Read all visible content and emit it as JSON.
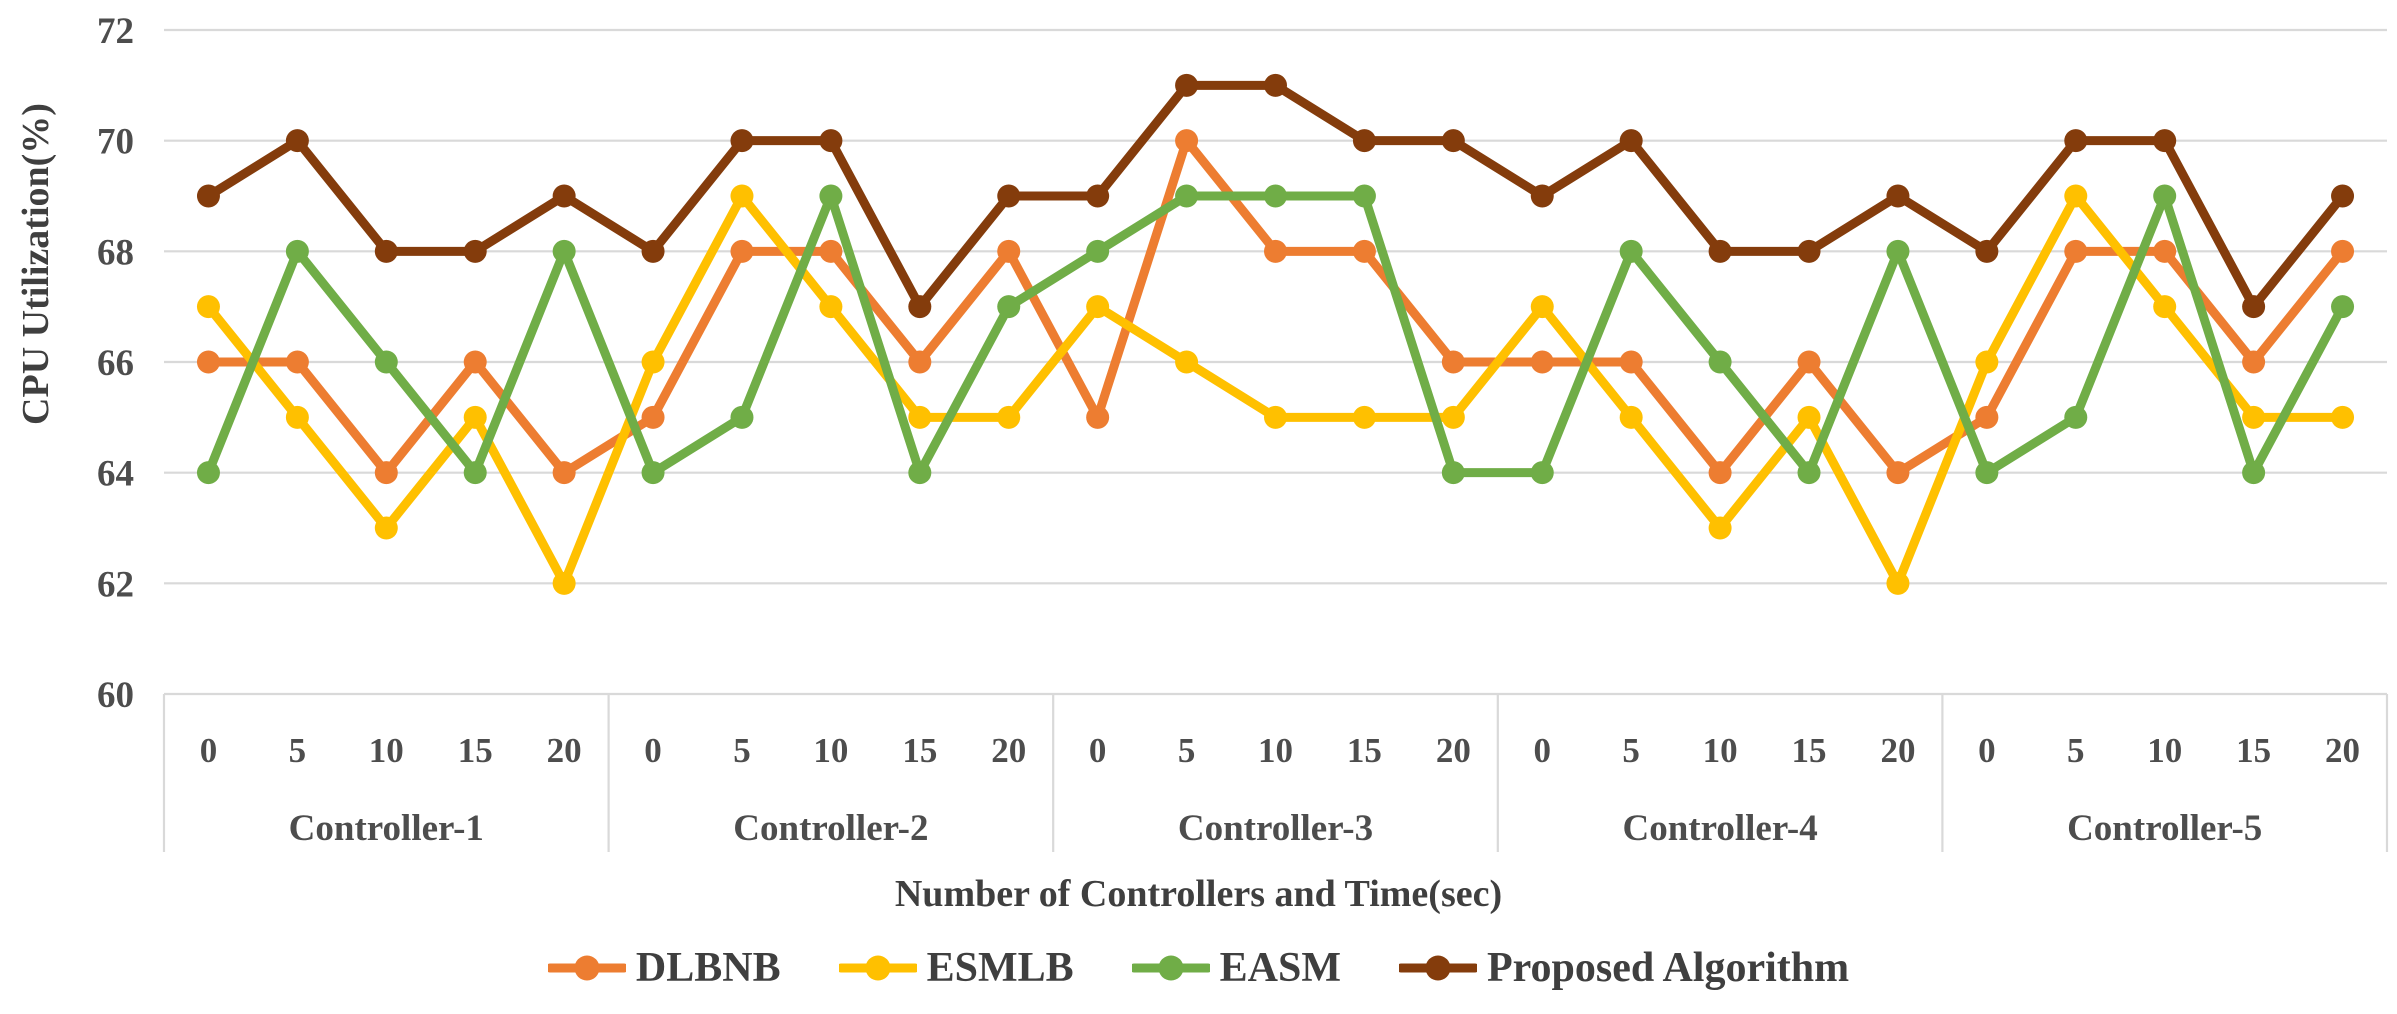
{
  "chart_data": {
    "type": "line",
    "title": "",
    "xlabel": "Number of Controllers and Time(sec)",
    "ylabel": "CPU Utilization(%)",
    "ylim": [
      60,
      72
    ],
    "yticks": [
      72,
      70,
      68,
      66,
      64,
      62,
      60
    ],
    "grid": true,
    "legend_position": "bottom",
    "groups": [
      "Controller-1",
      "Controller-2",
      "Controller-3",
      "Controller-4",
      "Controller-5"
    ],
    "time_ticks": [
      "0",
      "5",
      "10",
      "15",
      "20"
    ],
    "series": [
      {
        "name": "DLBNB",
        "color": "#ED7D31",
        "values": [
          66,
          66,
          64,
          66,
          64,
          65,
          68,
          68,
          66,
          68,
          65,
          70,
          68,
          68,
          66,
          66,
          66,
          64,
          66,
          64,
          65,
          68,
          68,
          66,
          68
        ]
      },
      {
        "name": "ESMLB",
        "color": "#FFC000",
        "values": [
          67,
          65,
          63,
          65,
          62,
          66,
          69,
          67,
          65,
          65,
          67,
          66,
          65,
          65,
          65,
          67,
          65,
          63,
          65,
          62,
          66,
          69,
          67,
          65,
          65
        ]
      },
      {
        "name": "EASM",
        "color": "#70AD47",
        "values": [
          64,
          68,
          66,
          64,
          68,
          64,
          65,
          69,
          64,
          67,
          68,
          69,
          69,
          69,
          64,
          64,
          68,
          66,
          64,
          68,
          64,
          65,
          69,
          64,
          67
        ]
      },
      {
        "name": "Proposed Algorithm",
        "color": "#843C0C",
        "values": [
          69,
          70,
          68,
          68,
          69,
          68,
          70,
          70,
          67,
          69,
          69,
          71,
          71,
          70,
          70,
          69,
          70,
          68,
          68,
          69,
          68,
          70,
          70,
          67,
          69
        ]
      }
    ]
  },
  "colors": {
    "gridline": "#D9D9D9",
    "separator": "#D9D9D9",
    "tick_text": "#4D4D4D",
    "title_text": "#3F3F3F"
  }
}
